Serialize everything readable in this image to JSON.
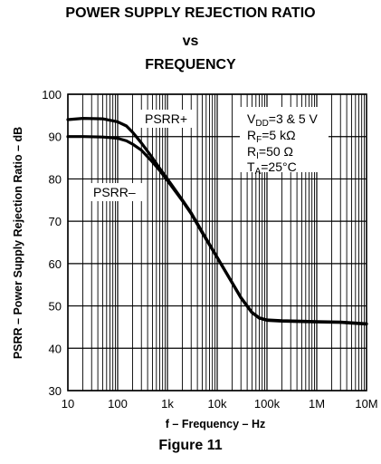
{
  "header": {
    "title_line1": "POWER SUPPLY REJECTION RATIO",
    "title_line2": "vs",
    "title_line3": "FREQUENCY"
  },
  "figure_caption": "Figure 11",
  "conditions": {
    "vdd": "V DD=3 & 5 V",
    "rf": "RF=5  kΩ",
    "ri": "RI=50 Ω",
    "ta": "TA=25°C"
  },
  "chart_data": {
    "type": "line",
    "title": "POWER SUPPLY REJECTION RATIO vs FREQUENCY",
    "xlabel": "f – Frequency – Hz",
    "ylabel": "PSRR  – Power Supply Rejection Ratio – dB",
    "x_scale": "log",
    "xlim": [
      10,
      10000000
    ],
    "ylim": [
      30,
      100
    ],
    "x_ticks": [
      10,
      100,
      1000,
      10000,
      100000,
      1000000,
      10000000
    ],
    "x_tick_labels": [
      "10",
      "100",
      "1k",
      "10k",
      "100k",
      "1M",
      "10M"
    ],
    "y_ticks": [
      30,
      40,
      50,
      60,
      70,
      80,
      90,
      100
    ],
    "y_tick_labels": [
      "30",
      "40",
      "50",
      "60",
      "70",
      "80",
      "90",
      "100"
    ],
    "grid": true,
    "series": [
      {
        "name": "PSRR+",
        "color": "#000000",
        "x": [
          10,
          20,
          50,
          100,
          150,
          200,
          300,
          500,
          700,
          1000,
          2000,
          3000,
          5000,
          10000,
          20000,
          30000,
          50000,
          70000,
          100000,
          200000,
          500000,
          1000000,
          3000000,
          10000000
        ],
        "y": [
          94,
          94.3,
          94.2,
          93.5,
          92.5,
          91,
          88.5,
          85,
          82.5,
          80,
          75,
          72,
          67.5,
          61.5,
          55.5,
          52,
          48.5,
          47.2,
          46.7,
          46.5,
          46.4,
          46.3,
          46.2,
          45.8
        ]
      },
      {
        "name": "PSRR–",
        "color": "#000000",
        "x": [
          10,
          20,
          50,
          100,
          150,
          200,
          300,
          500,
          700,
          1000,
          2000,
          3000,
          5000,
          10000,
          20000,
          30000,
          50000,
          70000,
          100000,
          200000,
          500000,
          1000000,
          3000000,
          10000000
        ],
        "y": [
          90,
          90,
          89.9,
          89.6,
          89,
          88.2,
          86.8,
          84,
          82,
          79.6,
          74.8,
          71.8,
          67.3,
          61.4,
          55.4,
          51.9,
          48.4,
          47.1,
          46.6,
          46.4,
          46.3,
          46.2,
          46.1,
          45.7
        ]
      }
    ],
    "series_labels": [
      "PSRR+",
      "PSRR–"
    ]
  }
}
